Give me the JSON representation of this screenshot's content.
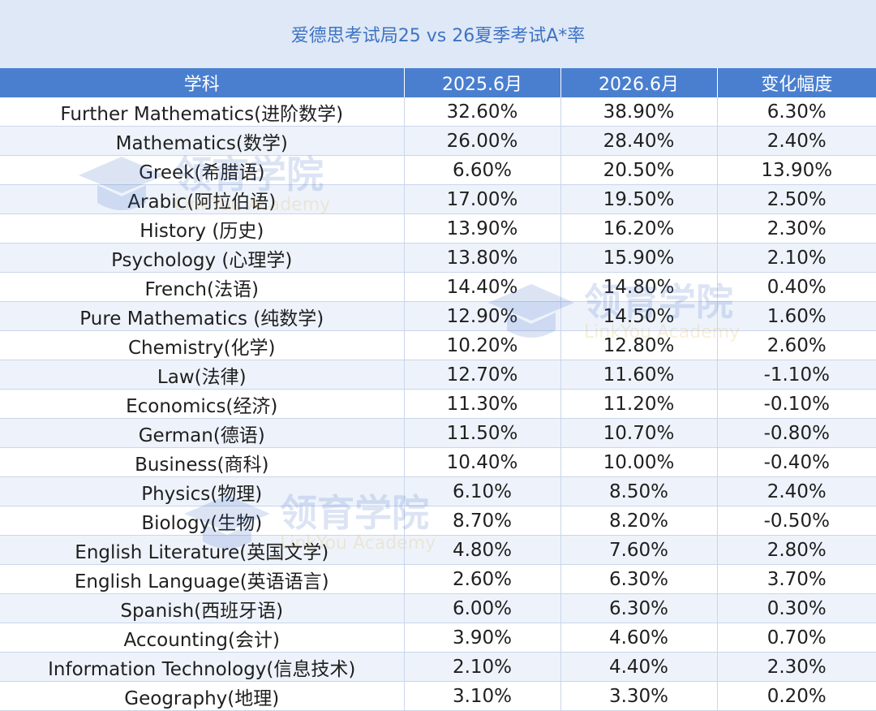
{
  "title": "爱德思考试局25 vs 26夏季考试A*率",
  "headers": [
    "学科",
    "2025.6月",
    "2026.6月",
    "变化幅度"
  ],
  "rows": [
    [
      "Further Mathematics(进阶数学)",
      "32.60%",
      "38.90%",
      "6.30%"
    ],
    [
      "Mathematics(数学)",
      "26.00%",
      "28.40%",
      "2.40%"
    ],
    [
      "Greek(希腊语)",
      "6.60%",
      "20.50%",
      "13.90%"
    ],
    [
      "Arabic(阿拉伯语)",
      "17.00%",
      "19.50%",
      "2.50%"
    ],
    [
      "History (历史)",
      "13.90%",
      "16.20%",
      "2.30%"
    ],
    [
      "Psychology (心理学)",
      "13.80%",
      "15.90%",
      "2.10%"
    ],
    [
      "French(法语)",
      "14.40%",
      "14.80%",
      "0.40%"
    ],
    [
      "Pure Mathematics (纯数学)",
      "12.90%",
      "14.50%",
      "1.60%"
    ],
    [
      "Chemistry(化学)",
      "10.20%",
      "12.80%",
      "2.60%"
    ],
    [
      "Law(法律)",
      "12.70%",
      "11.60%",
      "-1.10%"
    ],
    [
      "Economics(经济)",
      "11.30%",
      "11.20%",
      "-0.10%"
    ],
    [
      "German(德语)",
      "11.50%",
      "10.70%",
      "-0.80%"
    ],
    [
      "Business(商科)",
      "10.40%",
      "10.00%",
      "-0.40%"
    ],
    [
      "Physics(物理)",
      "6.10%",
      "8.50%",
      "2.40%"
    ],
    [
      "Biology(生物)",
      "8.70%",
      "8.20%",
      "-0.50%"
    ],
    [
      "English Literature(英国文学)",
      "4.80%",
      "7.60%",
      "2.80%"
    ],
    [
      "English Language(英语语言)",
      "2.60%",
      "6.30%",
      "3.70%"
    ],
    [
      "Spanish(西班牙语)",
      "6.00%",
      "6.30%",
      "0.30%"
    ],
    [
      "Accounting(会计)",
      "3.90%",
      "4.60%",
      "0.70%"
    ],
    [
      "Information Technology(信息技术)",
      "2.10%",
      "4.40%",
      "2.30%"
    ],
    [
      "Geography(地理)",
      "3.10%",
      "3.30%",
      "0.20%"
    ]
  ],
  "watermark": {
    "cn": "领育学院",
    "en": "LinkYou Academy",
    "icon": "graduation-cap-icon"
  },
  "colors": {
    "header_bg": "#4a7fd0",
    "title_bg": "#dfe8f6",
    "title_text": "#3e73c4",
    "stripe": "#eef3fb"
  }
}
